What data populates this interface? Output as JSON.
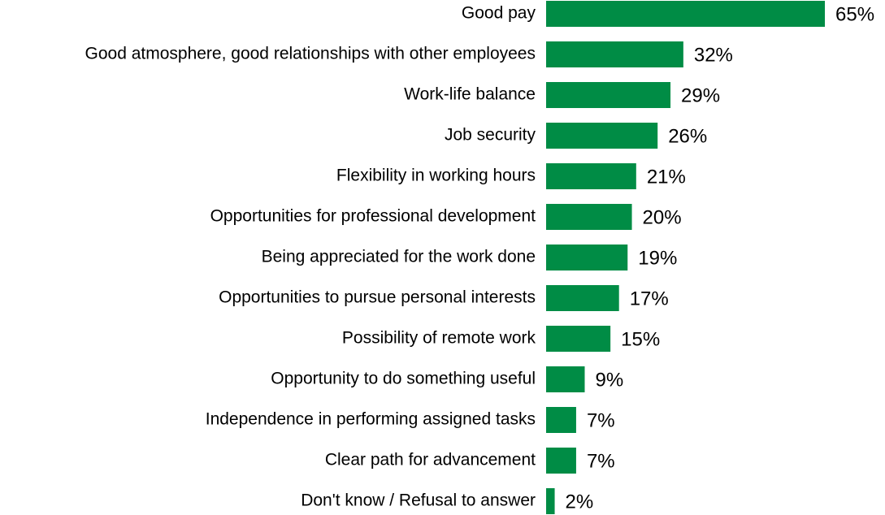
{
  "chart_data": {
    "type": "bar",
    "orientation": "horizontal",
    "categories": [
      "Good pay",
      "Good atmosphere, good relationships with other employees",
      "Work-life balance",
      "Job security",
      "Flexibility in working hours",
      "Opportunities for professional development",
      "Being appreciated for the work done",
      "Opportunities to pursue personal interests",
      "Possibility of remote work",
      "Opportunity to do something useful",
      "Independence in performing assigned tasks",
      "Clear path for advancement",
      "Don't know / Refusal to answer"
    ],
    "values": [
      65,
      32,
      29,
      26,
      21,
      20,
      19,
      17,
      15,
      9,
      7,
      7,
      2
    ],
    "value_labels": [
      "65%",
      "32%",
      "29%",
      "26%",
      "21%",
      "20%",
      "19%",
      "17%",
      "15%",
      "9%",
      "7%",
      "7%",
      "2%"
    ],
    "unit": "%",
    "xlim": [
      0,
      65
    ],
    "grid": false,
    "bar_color": "#008c45"
  }
}
